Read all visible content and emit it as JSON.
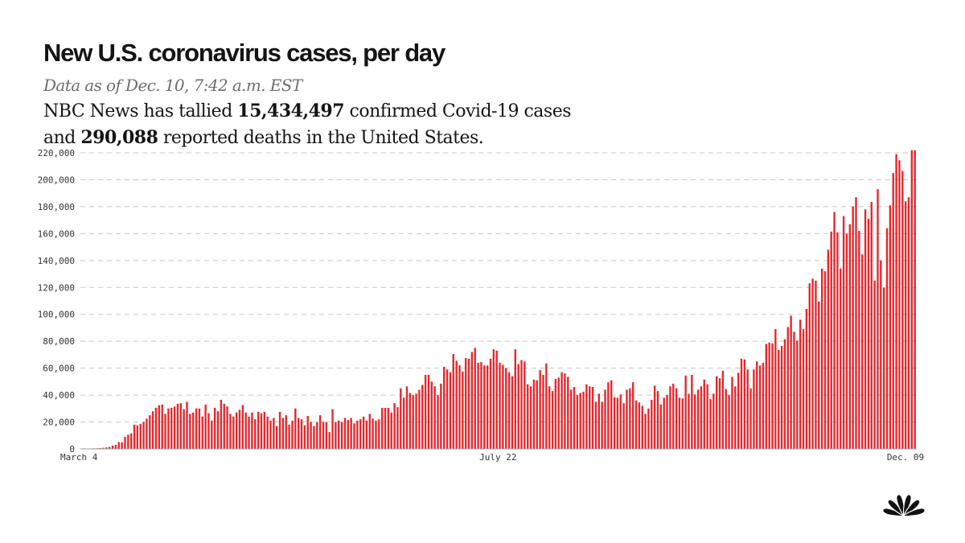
{
  "header": {
    "title": "New U.S. coronavirus cases, per day",
    "subtitle": "Data as of Dec. 10, 7:42 a.m. EST",
    "summary_line1_prefix": "NBC News has tallied ",
    "total_cases": "15,434,497",
    "summary_line1_suffix": " confirmed Covid-19 cases",
    "summary_line2_prefix": "and ",
    "total_deaths": "290,088",
    "summary_line2_suffix": " reported deaths in the United States."
  },
  "colors": {
    "bar": "#e4282e",
    "grid": "#c8c8c8",
    "axis_text": "#333333",
    "logo": "#111111"
  },
  "logo": {
    "icon": "peacock-logo-icon"
  },
  "chart_data": {
    "type": "bar",
    "title": "New U.S. coronavirus cases, per day",
    "xlabel": "",
    "ylabel": "",
    "ylim": [
      0,
      220000
    ],
    "yticks": [
      0,
      20000,
      40000,
      60000,
      80000,
      100000,
      120000,
      140000,
      160000,
      180000,
      200000,
      220000
    ],
    "ytick_labels": [
      "0",
      "20,000",
      "40,000",
      "60,000",
      "80,000",
      "100,000",
      "120,000",
      "140,000",
      "160,000",
      "180,000",
      "200,000",
      "220,000"
    ],
    "grid": true,
    "x_start": "2020-03-04",
    "x_end": "2020-12-09",
    "x_tick_labels": [
      {
        "label": "March 4",
        "date": "2020-03-04"
      },
      {
        "label": "July 22",
        "date": "2020-07-22"
      },
      {
        "label": "Dec. 09",
        "date": "2020-12-09"
      }
    ],
    "values": [
      100,
      150,
      200,
      250,
      350,
      450,
      650,
      800,
      1100,
      1500,
      2500,
      3000,
      5000,
      5000,
      9000,
      10500,
      11500,
      18000,
      17500,
      18500,
      20000,
      22500,
      25000,
      28000,
      30500,
      32500,
      33000,
      26000,
      30000,
      30500,
      31500,
      33500,
      34000,
      29500,
      35000,
      26000,
      27000,
      30000,
      30000,
      24000,
      33000,
      26500,
      21000,
      30500,
      28000,
      36500,
      33500,
      31500,
      26000,
      24000,
      27000,
      29000,
      32500,
      27000,
      24000,
      27000,
      22000,
      27500,
      26500,
      27500,
      24000,
      21000,
      23000,
      17000,
      27500,
      23000,
      25000,
      18000,
      21000,
      30000,
      23000,
      22000,
      17500,
      24500,
      20000,
      17000,
      20000,
      25000,
      20000,
      20000,
      12500,
      29500,
      20000,
      21000,
      20000,
      23000,
      21500,
      23000,
      19000,
      21000,
      22000,
      24000,
      21000,
      26000,
      22500,
      21000,
      22000,
      30500,
      30500,
      30500,
      27000,
      34000,
      31000,
      45000,
      38000,
      46500,
      41500,
      40000,
      41000,
      44000,
      47500,
      55000,
      55000,
      50000,
      46500,
      40000,
      48500,
      61000,
      59000,
      57000,
      70500,
      65500,
      62000,
      57500,
      67500,
      67000,
      72000,
      75000,
      64000,
      64500,
      62000,
      62000,
      67000,
      74000,
      73000,
      64000,
      62500,
      60000,
      57000,
      54000,
      74000,
      63000,
      66000,
      65000,
      48000,
      46500,
      51500,
      51000,
      58500,
      55000,
      63500,
      46500,
      43000,
      52000,
      53000,
      57000,
      56000,
      53500,
      44000,
      46000,
      40000,
      41500,
      42500,
      48000,
      46500,
      46000,
      35000,
      41000,
      35000,
      44000,
      49500,
      51000,
      38500,
      38000,
      40500,
      34000,
      44000,
      45000,
      49500,
      36000,
      34500,
      32000,
      26000,
      30000,
      36500,
      47000,
      43000,
      33000,
      38000,
      40000,
      46500,
      48500,
      45000,
      38000,
      37500,
      54500,
      41000,
      55000,
      40500,
      44000,
      46500,
      51500,
      48000,
      37000,
      41000,
      54000,
      52500,
      58000,
      44500,
      40000,
      53500,
      46500,
      56500,
      67000,
      66500,
      59000,
      45000,
      59000,
      65000,
      62000,
      64000,
      78000,
      79000,
      78500,
      89000,
      73500,
      76500,
      81500,
      90500,
      99000,
      87000,
      80500,
      96000,
      89000,
      104000,
      123000,
      126500,
      125000,
      109500,
      134000,
      132000,
      148000,
      161500,
      176000,
      161000,
      134000,
      173000,
      160000,
      167000,
      180000,
      187000,
      162000,
      144500,
      178000,
      171000,
      183500,
      125000,
      193000,
      140000,
      120000,
      164000,
      181000,
      205000,
      219000,
      214500,
      206500,
      184000,
      187000,
      222000,
      222000
    ]
  }
}
